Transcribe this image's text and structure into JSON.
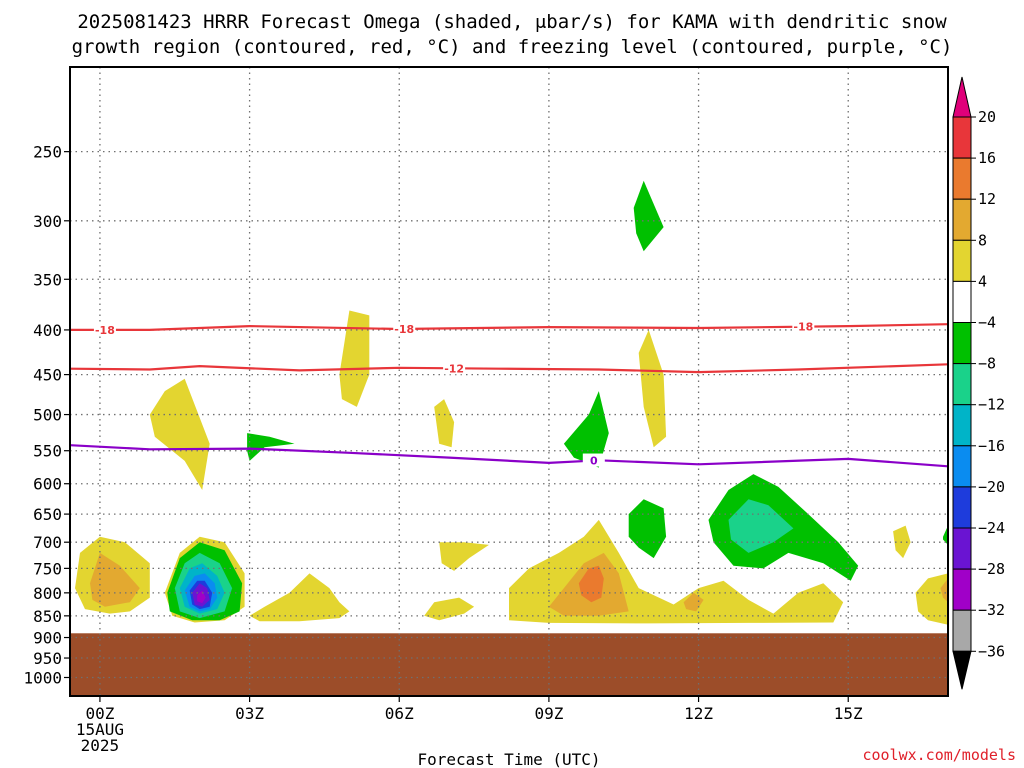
{
  "title": {
    "line1": "2025081423 HRRR Forecast Omega (shaded, μbar/s) for KAMA with dendritic snow",
    "line2": "growth region (contoured, red, °C) and freezing level (contoured, purple, °C)"
  },
  "credit": "coolwx.com/models",
  "colors": {
    "ground": "#9c4d29",
    "grid": "#707070",
    "dgz_contour": "#e8363a",
    "freezing_contour": "#8a00c8"
  },
  "chart_data": {
    "type": "heatmap",
    "title": "2025081423 HRRR Forecast Omega (shaded, μbar/s) for KAMA with dendritic snow growth region (contoured, red, °C) and freezing level (contoured, purple, °C)",
    "xlabel": "Forecast Time (UTC)",
    "ylabel": "",
    "x_ticks": [
      {
        "hour": 0,
        "label": "00Z",
        "sub1": "15AUG",
        "sub2": "2025"
      },
      {
        "hour": 3,
        "label": "03Z"
      },
      {
        "hour": 6,
        "label": "06Z"
      },
      {
        "hour": 9,
        "label": "09Z"
      },
      {
        "hour": 12,
        "label": "12Z"
      },
      {
        "hour": 15,
        "label": "15Z"
      }
    ],
    "xlim": [
      -0.6,
      17.0
    ],
    "y_ticks": [
      250,
      300,
      350,
      400,
      450,
      500,
      550,
      600,
      650,
      700,
      750,
      800,
      850,
      900,
      950,
      1000
    ],
    "ylim": [
      1050,
      200
    ],
    "y_scale": "log-pressure",
    "grid": true,
    "ground_pressure": 890,
    "colorbar": {
      "ticks": [
        "20",
        "16",
        "12",
        "8",
        "4",
        "−4",
        "−8",
        "−12",
        "−16",
        "−20",
        "−24",
        "−28",
        "−32",
        "−36"
      ],
      "colors": [
        "#e8363a",
        "#ea7a2e",
        "#e3a930",
        "#e3d530",
        "#ffffff",
        "#00c000",
        "#1ad28a",
        "#00b4c8",
        "#0a8cf0",
        "#1e3cdc",
        "#6a14d2",
        "#a000c8",
        "#a8a8a8"
      ],
      "top_extend": "#e0007a",
      "bottom_extend": "#000000"
    },
    "contours": [
      {
        "name": "dgz_-18",
        "level": -18,
        "color": "#e8363a",
        "points": [
          [
            -0.6,
            400
          ],
          [
            1,
            400
          ],
          [
            3,
            396
          ],
          [
            6,
            399
          ],
          [
            9,
            397
          ],
          [
            12,
            398
          ],
          [
            15,
            396
          ],
          [
            17,
            394
          ]
        ],
        "labels": [
          [
            0.1,
            "-18"
          ],
          [
            6.1,
            "-18"
          ],
          [
            14.1,
            "-18"
          ]
        ]
      },
      {
        "name": "dgz_-12",
        "level": -12,
        "color": "#e8363a",
        "points": [
          [
            -0.6,
            443
          ],
          [
            1,
            444
          ],
          [
            2,
            440
          ],
          [
            4,
            445
          ],
          [
            6,
            442
          ],
          [
            8,
            443
          ],
          [
            10,
            444
          ],
          [
            12,
            447
          ],
          [
            14,
            444
          ],
          [
            17,
            438
          ]
        ],
        "labels": [
          [
            7.1,
            "-12"
          ]
        ]
      },
      {
        "name": "freezing_0",
        "level": 0,
        "color": "#8a00c8",
        "points": [
          [
            -0.6,
            542
          ],
          [
            1,
            548
          ],
          [
            3,
            547
          ],
          [
            5,
            553
          ],
          [
            7,
            560
          ],
          [
            9,
            568
          ],
          [
            10,
            564
          ],
          [
            12,
            570
          ],
          [
            15,
            562
          ],
          [
            17,
            573
          ]
        ],
        "labels": [
          [
            9.9,
            "0"
          ]
        ]
      }
    ],
    "omega_regions": [
      {
        "value": 4,
        "points": [
          [
            1,
            500
          ],
          [
            1.3,
            470
          ],
          [
            1.7,
            455
          ],
          [
            2.2,
            540
          ],
          [
            2.05,
            610
          ],
          [
            1.7,
            565
          ],
          [
            1.1,
            530
          ]
        ]
      },
      {
        "value": 4,
        "points": [
          [
            4.8,
            450
          ],
          [
            5.0,
            380
          ],
          [
            5.4,
            385
          ],
          [
            5.4,
            450
          ],
          [
            5.15,
            490
          ],
          [
            4.85,
            480
          ]
        ]
      },
      {
        "value": 4,
        "points": [
          [
            6.7,
            490
          ],
          [
            6.9,
            480
          ],
          [
            7.1,
            510
          ],
          [
            7.05,
            545
          ],
          [
            6.8,
            540
          ]
        ]
      },
      {
        "value": 4,
        "points": [
          [
            10.8,
            425
          ],
          [
            11.0,
            400
          ],
          [
            11.3,
            450
          ],
          [
            11.35,
            530
          ],
          [
            11.1,
            545
          ],
          [
            10.9,
            490
          ]
        ]
      },
      {
        "value": -4,
        "points": [
          [
            2.95,
            525
          ],
          [
            3.4,
            530
          ],
          [
            3.9,
            540
          ],
          [
            3.3,
            545
          ],
          [
            3.0,
            565
          ],
          [
            2.95,
            550
          ]
        ]
      },
      {
        "value": -4,
        "points": [
          [
            9.3,
            540
          ],
          [
            9.8,
            500
          ],
          [
            10.0,
            470
          ],
          [
            10.2,
            525
          ],
          [
            10.0,
            575
          ],
          [
            9.5,
            560
          ]
        ]
      },
      {
        "value": -4,
        "points": [
          [
            10.7,
            290
          ],
          [
            10.9,
            270
          ],
          [
            11.3,
            305
          ],
          [
            10.9,
            325
          ],
          [
            10.75,
            310
          ]
        ]
      },
      {
        "value": 4,
        "points": [
          [
            -0.5,
            790
          ],
          [
            -0.4,
            720
          ],
          [
            0.0,
            690
          ],
          [
            0.5,
            700
          ],
          [
            1.0,
            740
          ],
          [
            1.0,
            810
          ],
          [
            0.6,
            840
          ],
          [
            0.2,
            845
          ],
          [
            -0.3,
            835
          ]
        ]
      },
      {
        "value": 8,
        "points": [
          [
            -0.2,
            780
          ],
          [
            0.0,
            720
          ],
          [
            0.4,
            745
          ],
          [
            0.8,
            790
          ],
          [
            0.6,
            820
          ],
          [
            0.1,
            830
          ],
          [
            -0.15,
            815
          ]
        ]
      },
      {
        "value": 4,
        "points": [
          [
            1.3,
            800
          ],
          [
            1.6,
            720
          ],
          [
            2.0,
            690
          ],
          [
            2.5,
            700
          ],
          [
            2.9,
            760
          ],
          [
            2.9,
            830
          ],
          [
            2.5,
            860
          ],
          [
            1.9,
            865
          ],
          [
            1.45,
            850
          ]
        ]
      },
      {
        "value": -4,
        "points": [
          [
            1.35,
            800
          ],
          [
            1.6,
            730
          ],
          [
            2.0,
            700
          ],
          [
            2.5,
            715
          ],
          [
            2.85,
            780
          ],
          [
            2.8,
            840
          ],
          [
            2.4,
            860
          ],
          [
            1.85,
            860
          ],
          [
            1.4,
            840
          ]
        ]
      },
      {
        "value": -8,
        "points": [
          [
            1.5,
            790
          ],
          [
            1.7,
            740
          ],
          [
            2.0,
            720
          ],
          [
            2.4,
            740
          ],
          [
            2.65,
            790
          ],
          [
            2.5,
            840
          ],
          [
            2.0,
            855
          ],
          [
            1.6,
            840
          ]
        ]
      },
      {
        "value": -12,
        "points": [
          [
            1.6,
            790
          ],
          [
            1.8,
            750
          ],
          [
            2.05,
            740
          ],
          [
            2.35,
            765
          ],
          [
            2.5,
            800
          ],
          [
            2.35,
            835
          ],
          [
            2.0,
            845
          ],
          [
            1.7,
            830
          ]
        ]
      },
      {
        "value": -16,
        "points": [
          [
            1.7,
            795
          ],
          [
            1.9,
            765
          ],
          [
            2.1,
            760
          ],
          [
            2.3,
            780
          ],
          [
            2.35,
            810
          ],
          [
            2.2,
            835
          ],
          [
            2.0,
            840
          ],
          [
            1.8,
            830
          ]
        ]
      },
      {
        "value": -20,
        "points": [
          [
            1.8,
            795
          ],
          [
            1.95,
            775
          ],
          [
            2.1,
            775
          ],
          [
            2.25,
            800
          ],
          [
            2.2,
            830
          ],
          [
            2.0,
            835
          ],
          [
            1.85,
            825
          ]
        ]
      },
      {
        "value": -24,
        "points": [
          [
            1.85,
            800
          ],
          [
            2.0,
            780
          ],
          [
            2.15,
            790
          ],
          [
            2.2,
            815
          ],
          [
            2.05,
            830
          ],
          [
            1.9,
            825
          ]
        ]
      },
      {
        "value": -28,
        "points": [
          [
            1.95,
            805
          ],
          [
            2.05,
            795
          ],
          [
            2.12,
            810
          ],
          [
            2.05,
            822
          ],
          [
            1.95,
            818
          ]
        ]
      },
      {
        "value": 4,
        "points": [
          [
            3.0,
            850
          ],
          [
            3.3,
            830
          ],
          [
            3.8,
            800
          ],
          [
            4.2,
            760
          ],
          [
            4.6,
            790
          ],
          [
            4.8,
            820
          ],
          [
            5.0,
            840
          ],
          [
            4.8,
            855
          ],
          [
            4.0,
            862
          ],
          [
            3.2,
            862
          ]
        ]
      },
      {
        "value": 4,
        "points": [
          [
            6.8,
            700
          ],
          [
            7.3,
            700
          ],
          [
            7.8,
            705
          ],
          [
            7.4,
            730
          ],
          [
            7.1,
            755
          ],
          [
            6.85,
            740
          ]
        ]
      },
      {
        "value": 4,
        "points": [
          [
            6.5,
            850
          ],
          [
            6.7,
            820
          ],
          [
            7.2,
            810
          ],
          [
            7.5,
            830
          ],
          [
            7.3,
            845
          ],
          [
            6.8,
            860
          ]
        ]
      },
      {
        "value": 4,
        "points": [
          [
            8.2,
            790
          ],
          [
            8.6,
            750
          ],
          [
            9.2,
            720
          ],
          [
            9.7,
            690
          ],
          [
            10.0,
            660
          ],
          [
            10.4,
            720
          ],
          [
            10.8,
            790
          ],
          [
            11.5,
            825
          ],
          [
            12.0,
            790
          ],
          [
            12.5,
            775
          ],
          [
            13.0,
            815
          ],
          [
            13.5,
            845
          ],
          [
            14.0,
            800
          ],
          [
            14.5,
            780
          ],
          [
            14.9,
            820
          ],
          [
            14.7,
            865
          ],
          [
            13.0,
            866
          ],
          [
            11.0,
            867
          ],
          [
            9.0,
            866
          ],
          [
            8.2,
            860
          ]
        ]
      },
      {
        "value": 8,
        "points": [
          [
            9.0,
            830
          ],
          [
            9.3,
            790
          ],
          [
            9.7,
            740
          ],
          [
            10.1,
            720
          ],
          [
            10.4,
            760
          ],
          [
            10.6,
            840
          ],
          [
            10.0,
            850
          ],
          [
            9.3,
            850
          ]
        ]
      },
      {
        "value": 12,
        "points": [
          [
            9.6,
            780
          ],
          [
            9.8,
            750
          ],
          [
            10.0,
            745
          ],
          [
            10.1,
            770
          ],
          [
            10.05,
            810
          ],
          [
            9.85,
            820
          ],
          [
            9.65,
            805
          ]
        ]
      },
      {
        "value": 8,
        "points": [
          [
            11.7,
            820
          ],
          [
            11.9,
            800
          ],
          [
            12.1,
            815
          ],
          [
            11.95,
            840
          ],
          [
            11.75,
            835
          ]
        ]
      },
      {
        "value": -4,
        "points": [
          [
            10.6,
            650
          ],
          [
            10.9,
            625
          ],
          [
            11.3,
            640
          ],
          [
            11.35,
            690
          ],
          [
            11.1,
            730
          ],
          [
            10.8,
            710
          ],
          [
            10.6,
            690
          ]
        ]
      },
      {
        "value": -4,
        "points": [
          [
            12.2,
            660
          ],
          [
            12.6,
            610
          ],
          [
            13.1,
            585
          ],
          [
            13.6,
            605
          ],
          [
            14.2,
            650
          ],
          [
            14.8,
            700
          ],
          [
            15.2,
            745
          ],
          [
            15.05,
            775
          ],
          [
            14.5,
            740
          ],
          [
            13.8,
            720
          ],
          [
            13.3,
            750
          ],
          [
            12.7,
            745
          ],
          [
            12.3,
            700
          ]
        ]
      },
      {
        "value": -8,
        "points": [
          [
            12.6,
            660
          ],
          [
            13.0,
            625
          ],
          [
            13.4,
            635
          ],
          [
            13.9,
            675
          ],
          [
            13.5,
            700
          ],
          [
            13.0,
            720
          ],
          [
            12.65,
            695
          ]
        ]
      },
      {
        "value": 4,
        "points": [
          [
            15.9,
            680
          ],
          [
            16.15,
            670
          ],
          [
            16.25,
            700
          ],
          [
            16.1,
            730
          ],
          [
            15.95,
            715
          ]
        ]
      },
      {
        "value": -4,
        "points": [
          [
            16.9,
            690
          ],
          [
            17.0,
            670
          ],
          [
            17.0,
            705
          ],
          [
            16.9,
            695
          ]
        ]
      },
      {
        "value": 4,
        "points": [
          [
            16.35,
            800
          ],
          [
            16.6,
            770
          ],
          [
            17.0,
            760
          ],
          [
            17.0,
            870
          ],
          [
            16.6,
            860
          ],
          [
            16.4,
            840
          ]
        ]
      },
      {
        "value": 8,
        "points": [
          [
            16.85,
            790
          ],
          [
            17.0,
            770
          ],
          [
            17.0,
            820
          ],
          [
            16.9,
            810
          ]
        ]
      }
    ]
  }
}
